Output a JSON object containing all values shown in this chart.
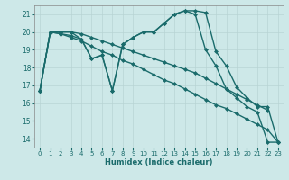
{
  "xlabel": "Humidex (Indice chaleur)",
  "xlim": [
    -0.5,
    23.5
  ],
  "ylim": [
    13.5,
    21.5
  ],
  "xticks": [
    0,
    1,
    2,
    3,
    4,
    5,
    6,
    7,
    8,
    9,
    10,
    11,
    12,
    13,
    14,
    15,
    16,
    17,
    18,
    19,
    20,
    21,
    22,
    23
  ],
  "yticks": [
    14,
    15,
    16,
    17,
    18,
    19,
    20,
    21
  ],
  "background_color": "#cde8e8",
  "grid_color": "#b8d4d4",
  "line_color": "#1a6b6b",
  "series": [
    {
      "x": [
        0,
        1,
        2,
        3,
        4,
        5,
        6,
        7,
        8,
        9,
        10,
        11,
        12,
        13,
        14,
        15,
        16,
        17,
        18,
        19,
        20,
        21,
        22,
        23
      ],
      "y": [
        16.7,
        20.0,
        20.0,
        20.0,
        19.6,
        18.5,
        18.7,
        16.7,
        19.3,
        19.7,
        20.0,
        20.0,
        20.5,
        21.0,
        21.2,
        21.2,
        21.1,
        18.9,
        18.1,
        16.9,
        16.3,
        15.8,
        15.8,
        13.8
      ]
    },
    {
      "x": [
        0,
        1,
        2,
        3,
        4,
        5,
        6,
        7,
        8,
        9,
        10,
        11,
        12,
        13,
        14,
        15,
        16,
        17,
        18,
        19,
        20,
        21,
        22,
        23
      ],
      "y": [
        16.7,
        20.0,
        19.9,
        19.8,
        19.6,
        18.5,
        18.7,
        16.7,
        19.3,
        19.7,
        20.0,
        20.0,
        20.5,
        21.0,
        21.2,
        21.0,
        19.0,
        18.1,
        16.8,
        16.3,
        15.8,
        15.5,
        13.8,
        13.8
      ]
    },
    {
      "x": [
        0,
        1,
        2,
        3,
        4,
        5,
        6,
        7,
        8,
        9,
        10,
        11,
        12,
        13,
        14,
        15,
        16,
        17,
        18,
        19,
        20,
        21,
        22,
        23
      ],
      "y": [
        16.7,
        20.0,
        19.9,
        19.7,
        19.5,
        19.2,
        18.9,
        18.7,
        18.4,
        18.2,
        17.9,
        17.6,
        17.3,
        17.1,
        16.8,
        16.5,
        16.2,
        15.9,
        15.7,
        15.4,
        15.1,
        14.8,
        14.5,
        13.8
      ]
    },
    {
      "x": [
        0,
        1,
        2,
        3,
        4,
        5,
        6,
        7,
        8,
        9,
        10,
        11,
        12,
        13,
        14,
        15,
        16,
        17,
        18,
        19,
        20,
        21,
        22
      ],
      "y": [
        16.7,
        20.0,
        20.0,
        20.0,
        19.9,
        19.7,
        19.5,
        19.3,
        19.1,
        18.9,
        18.7,
        18.5,
        18.3,
        18.1,
        17.9,
        17.7,
        17.4,
        17.1,
        16.8,
        16.5,
        16.2,
        15.9,
        15.6
      ]
    }
  ],
  "marker": "D",
  "markersize": 2.0,
  "linewidth": 1.0
}
